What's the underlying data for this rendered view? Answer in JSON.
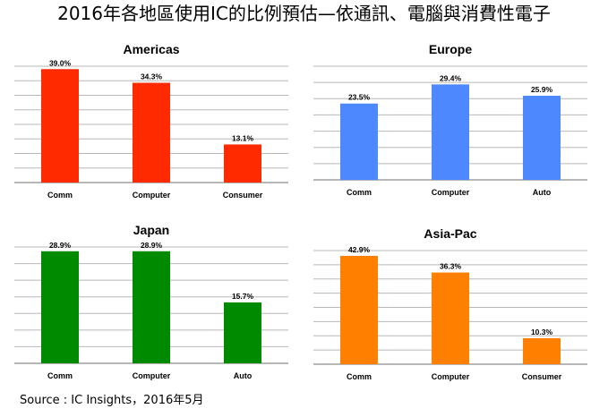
{
  "title": "2016年各地區使用IC的比例預估—依通訊、電腦與消費性電子",
  "source": "Source : IC Insights，2016年5月",
  "chart_data": [
    {
      "type": "bar",
      "title": "Americas",
      "categories": [
        "Comm",
        "Computer",
        "Consumer"
      ],
      "values": [
        39.0,
        34.3,
        13.1
      ],
      "value_labels": [
        "39.0%",
        "34.3%",
        "13.1%"
      ],
      "color": "#ff2a00",
      "ylim": [
        0,
        40
      ],
      "grid": true
    },
    {
      "type": "bar",
      "title": "Europe",
      "categories": [
        "Comm",
        "Computer",
        "Auto"
      ],
      "values": [
        23.5,
        29.4,
        25.9
      ],
      "value_labels": [
        "23.5%",
        "29.4%",
        "25.9%"
      ],
      "color": "#4d88ff",
      "ylim": [
        0,
        35
      ],
      "grid": true
    },
    {
      "type": "bar",
      "title": "Japan",
      "categories": [
        "Comm",
        "Computer",
        "Auto"
      ],
      "values": [
        28.9,
        28.9,
        15.7
      ],
      "value_labels": [
        "28.9%",
        "28.9%",
        "15.7%"
      ],
      "color": "#008a00",
      "ylim": [
        0,
        30
      ],
      "grid": true
    },
    {
      "type": "bar",
      "title": "Asia-Pac",
      "categories": [
        "Comm",
        "Computer",
        "Consumer"
      ],
      "values": [
        42.9,
        36.3,
        10.3
      ],
      "value_labels": [
        "42.9%",
        "36.3%",
        "10.3%"
      ],
      "color": "#ff7f00",
      "ylim": [
        0,
        45
      ],
      "grid": true
    }
  ]
}
